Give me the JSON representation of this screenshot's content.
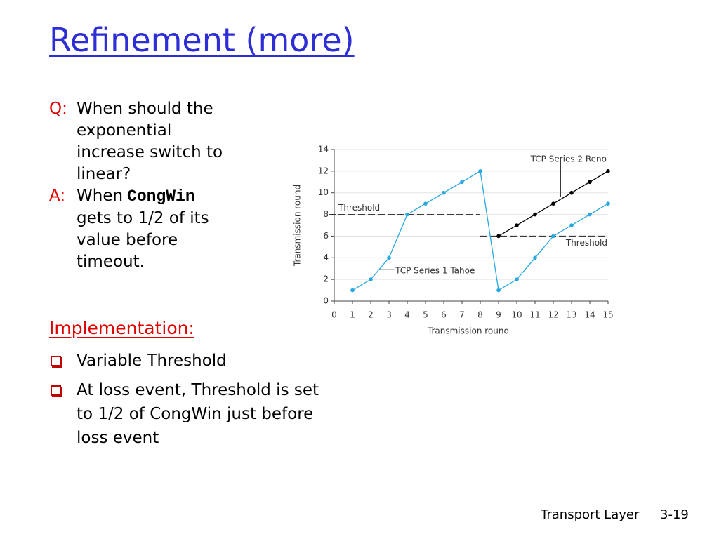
{
  "title": "Refinement (more)",
  "qa": [
    {
      "label": "Q:",
      "lines": [
        "When should the",
        "exponential",
        "increase switch to",
        "linear?"
      ]
    },
    {
      "label": "A:",
      "first": "When",
      "code": "CongWin",
      "lines": [
        "gets to 1/2 of its",
        "value before",
        "timeout."
      ]
    }
  ],
  "implementation": {
    "heading": "Implementation:",
    "bullets": [
      "Variable Threshold",
      "At loss event, Threshold is set to 1/2 of CongWin just before loss event"
    ]
  },
  "footer": {
    "left": "Transport Layer",
    "right": "3-19"
  },
  "chart_data": {
    "type": "line",
    "xlabel": "Transmission round",
    "ylabel": "Transmission round",
    "xlim": [
      0,
      15
    ],
    "xticks": [
      0,
      1,
      2,
      3,
      4,
      5,
      6,
      7,
      8,
      9,
      10,
      11,
      12,
      13,
      14,
      15
    ],
    "ylim": [
      0,
      14
    ],
    "yticks": [
      0,
      2,
      4,
      6,
      8,
      10,
      12,
      14
    ],
    "grid": true,
    "series": [
      {
        "name": "TCP Series 1 Tahoe",
        "color": "#29a8e0",
        "x": [
          1,
          2,
          3,
          4,
          5,
          6,
          7,
          8,
          9,
          10,
          11,
          12,
          13,
          14,
          15
        ],
        "values": [
          1,
          2,
          4,
          8,
          9,
          10,
          11,
          12,
          1,
          2,
          4,
          6,
          7,
          8,
          9
        ]
      },
      {
        "name": "TCP Series 2 Reno",
        "color": "#000000",
        "x": [
          9,
          10,
          11,
          12,
          13,
          14,
          15
        ],
        "values": [
          6,
          7,
          8,
          9,
          10,
          11,
          12
        ]
      }
    ],
    "thresholds": [
      {
        "label": "Threshold",
        "value": 8,
        "x": [
          0,
          8
        ]
      },
      {
        "label": "Threshold",
        "value": 6,
        "x": [
          8,
          15
        ]
      }
    ]
  }
}
